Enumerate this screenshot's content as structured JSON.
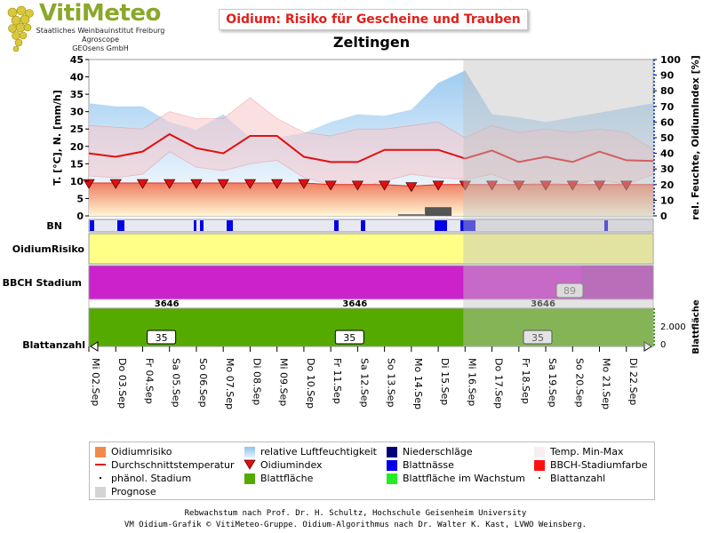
{
  "header": {
    "logo_title": "VitiMeteo",
    "logo_lines": [
      "Staatliches Weinbauinstitut Freiburg",
      "Agroscope",
      "GEOsens GmbH"
    ],
    "title": "Oidium: Risiko für Gescheine und Trauben",
    "location": "Zeltingen"
  },
  "colors": {
    "title": "#e0201a",
    "logo": "#8aa82a",
    "humidity": "#8ec3ee",
    "temp_band": "#f8c8cc",
    "avg_temp": "#e01010",
    "oidium_risk_area": "#f08a4a",
    "oidium_index": "#e01010",
    "precipitation": "#00007a",
    "leaf_wetness": "#0000e8",
    "bbch": "#cc22cc",
    "leaf_area": "#55aa00",
    "risk_yellow": "#ffff88",
    "forecast_overlay": "#c0c0c0"
  },
  "chart_data": {
    "type": "line",
    "dates": [
      "Mi 02.Sep",
      "Do 03.Sep",
      "Fr 04.Sep",
      "Sa 05.Sep",
      "So 06.Sep",
      "Mo 07.Sep",
      "Di 08.Sep",
      "Mi 09.Sep",
      "Do 10.Sep",
      "Fr 11.Sep",
      "Sa 12.Sep",
      "So 13.Sep",
      "Mo 14.Sep",
      "Di 15.Sep",
      "Mi 16.Sep",
      "Do 17.Sep",
      "Fr 18.Sep",
      "Sa 19.Sep",
      "So 20.Sep",
      "Mo 21.Sep",
      "Di 22.Sep"
    ],
    "forecast_from": "Mi 16.Sep",
    "left_axis": {
      "label": "T. [°C], N. [mm/h]",
      "ticks": [
        0,
        5,
        10,
        15,
        20,
        25,
        30,
        35,
        40,
        45
      ],
      "range": [
        0,
        45
      ]
    },
    "right_axis": {
      "label": "rel. Feuchte, OidiumIndex [%]",
      "ticks": [
        0,
        10,
        20,
        30,
        40,
        50,
        60,
        70,
        80,
        90,
        100
      ],
      "range": [
        0,
        100
      ]
    },
    "avg_temp": [
      18,
      17,
      18.5,
      23.5,
      19.5,
      18,
      23,
      23,
      17,
      15.5,
      15.5,
      19,
      19,
      19,
      16.5,
      18.8,
      15.5,
      17,
      15.5,
      18.5,
      16,
      15.8
    ],
    "temp_max": [
      26,
      25.5,
      25,
      30,
      28,
      28,
      34,
      28,
      24,
      23,
      25,
      25,
      26,
      27,
      22.5,
      26,
      24,
      25,
      24,
      25,
      24,
      19
    ],
    "temp_min": [
      11.5,
      11,
      12,
      18.5,
      14,
      13,
      15,
      16,
      11,
      9,
      8,
      10,
      12,
      11,
      10.5,
      12,
      9,
      9.5,
      9,
      10.5,
      9,
      12
    ],
    "humidity": [
      72,
      70,
      70,
      60,
      55,
      65,
      50,
      50,
      53,
      60,
      65,
      64,
      68,
      85,
      93,
      65,
      63,
      60,
      63,
      66,
      69,
      72
    ],
    "oidium_index": [
      21,
      21,
      21,
      21,
      21,
      21,
      21,
      21,
      21,
      20,
      20,
      20,
      19,
      20,
      20,
      20,
      20,
      20,
      20,
      20,
      20,
      20
    ],
    "precipitation": [
      0,
      0,
      0,
      0,
      0,
      0,
      0,
      0,
      0,
      0,
      0,
      0,
      0.5,
      2.5,
      0,
      0,
      0,
      0,
      0,
      0,
      0,
      0
    ],
    "bn_label": "BN",
    "risk_label": "OidiumRisiko",
    "bbch_label": "BBCH Stadium",
    "bbch_values": [
      "3646",
      "3646",
      "3646"
    ],
    "bbch_value_positions": [
      2.9,
      9.9,
      16.9
    ],
    "bbch_forecast_badge": "89",
    "leaf_label": "Blattanzahl",
    "leaf_area_label": "Blattfläche",
    "leaf_area_ticks": [
      "2.000",
      "0"
    ],
    "leaf_counts": [
      "35",
      "35",
      "35"
    ],
    "leaf_count_positions": [
      2.7,
      9.7,
      16.7
    ]
  },
  "legend": {
    "items": [
      "Oidiumrisiko",
      "relative Luftfeuchtigkeit",
      "Niederschläge",
      "Temp. Min-Max",
      "Durchschnittstemperatur",
      "Oidiumindex",
      "Blattnässe",
      "BBCH-Stadiumfarbe",
      "phänol. Stadium",
      "Blattfläche",
      "Blattfläche im Wachstum",
      "Blattanzahl",
      "Prognose"
    ]
  },
  "footer": {
    "line1": "Rebwachstum nach Prof. Dr. H. Schultz, Hochschule Geisenheim University",
    "line2": "VM Oidium-Grafik © VitiMeteo-Gruppe. Oidium-Algorithmus nach Dr. Walter K. Kast, LVWO Weinsberg."
  }
}
